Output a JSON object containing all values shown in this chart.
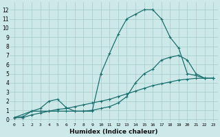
{
  "bg_color": "#cce8e8",
  "grid_color": "#aacfcf",
  "line_color": "#1a6e6e",
  "xlabel": "Humidex (Indice chaleur)",
  "xlim": [
    -0.5,
    23.5
  ],
  "ylim": [
    -0.3,
    12.8
  ],
  "xticks": [
    0,
    1,
    2,
    3,
    4,
    5,
    6,
    7,
    8,
    9,
    10,
    11,
    12,
    13,
    14,
    15,
    16,
    17,
    18,
    19,
    20,
    21,
    22,
    23
  ],
  "yticks": [
    0,
    1,
    2,
    3,
    4,
    5,
    6,
    7,
    8,
    9,
    10,
    11,
    12
  ],
  "line1_x": [
    0,
    1,
    2,
    3,
    4,
    5,
    6,
    7,
    8,
    9,
    10,
    11,
    12,
    13,
    14,
    15,
    16,
    17,
    18,
    19,
    20,
    21,
    22,
    23
  ],
  "line1_y": [
    0.2,
    0.3,
    0.9,
    0.9,
    0.9,
    0.9,
    0.9,
    0.9,
    0.9,
    0.9,
    5.0,
    7.2,
    9.3,
    11.0,
    11.5,
    12.0,
    12.0,
    11.0,
    9.0,
    7.8,
    5.0,
    4.8,
    4.5,
    4.5
  ],
  "line2_x": [
    0,
    2,
    3,
    4,
    5,
    6,
    7,
    8,
    9,
    10,
    11,
    12,
    13,
    14,
    15,
    16,
    17,
    18,
    19,
    20,
    21,
    22,
    23
  ],
  "line2_y": [
    0.2,
    0.9,
    1.2,
    2.0,
    2.2,
    1.3,
    0.9,
    0.9,
    1.0,
    1.2,
    1.4,
    1.8,
    2.5,
    4.0,
    5.0,
    5.5,
    6.5,
    6.8,
    7.0,
    6.5,
    5.0,
    4.5,
    4.5
  ],
  "line3_x": [
    0,
    1,
    2,
    3,
    4,
    5,
    6,
    7,
    8,
    9,
    10,
    11,
    12,
    13,
    14,
    15,
    16,
    17,
    18,
    19,
    20,
    21,
    22,
    23
  ],
  "line3_y": [
    0.2,
    0.2,
    0.5,
    0.7,
    0.9,
    1.1,
    1.2,
    1.4,
    1.6,
    1.8,
    2.0,
    2.2,
    2.5,
    2.8,
    3.1,
    3.4,
    3.7,
    3.9,
    4.1,
    4.3,
    4.4,
    4.5,
    4.5,
    4.5
  ]
}
